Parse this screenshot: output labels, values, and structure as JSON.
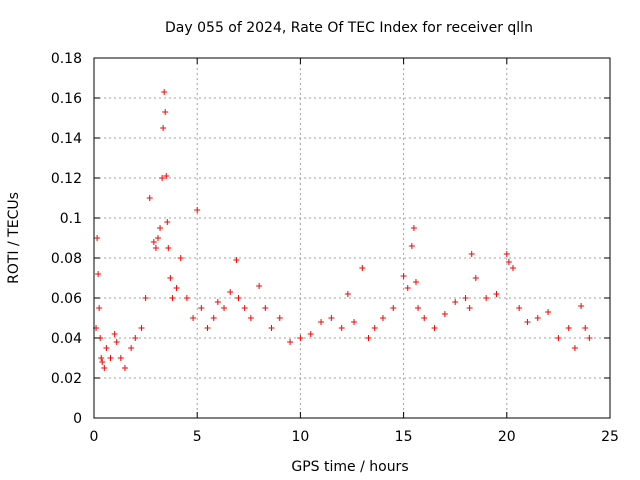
{
  "chart_data": {
    "type": "scatter",
    "title": "Day 055 of 2024, Rate Of TEC Index for receiver qlln",
    "xlabel": "GPS time / hours",
    "ylabel": "ROTI / TECUs",
    "xlim": [
      0,
      25
    ],
    "ylim": [
      0,
      0.18
    ],
    "x_ticks": [
      0,
      5,
      10,
      15,
      20,
      25
    ],
    "x_tick_labels": [
      "0",
      "5",
      "10",
      "15",
      "20",
      "25"
    ],
    "y_ticks": [
      0,
      0.02,
      0.04,
      0.06,
      0.08,
      0.1,
      0.12,
      0.14,
      0.16,
      0.18
    ],
    "y_tick_labels": [
      "0",
      "0.02",
      "0.04",
      "0.06",
      "0.08",
      "0.1",
      "0.12",
      "0.14",
      "0.16",
      "0.18"
    ],
    "grid": true,
    "marker": "+",
    "color": "#ff0000",
    "series": [
      {
        "name": "ROTI",
        "x": [
          0.1,
          0.15,
          0.2,
          0.25,
          0.3,
          0.35,
          0.4,
          0.5,
          0.6,
          0.8,
          1.0,
          1.1,
          1.3,
          1.5,
          1.8,
          2.0,
          2.3,
          2.5,
          2.7,
          2.9,
          3.0,
          3.1,
          3.2,
          3.3,
          3.35,
          3.4,
          3.45,
          3.5,
          3.55,
          3.6,
          3.7,
          3.8,
          4.0,
          4.2,
          4.5,
          4.8,
          5.0,
          5.2,
          5.5,
          5.8,
          6.0,
          6.3,
          6.6,
          6.9,
          7.0,
          7.3,
          7.6,
          8.0,
          8.3,
          8.6,
          9.0,
          9.5,
          10.0,
          10.5,
          11.0,
          11.5,
          12.0,
          12.3,
          12.6,
          13.0,
          13.3,
          13.6,
          14.0,
          14.5,
          15.0,
          15.2,
          15.4,
          15.5,
          15.6,
          15.7,
          16.0,
          16.5,
          17.0,
          17.5,
          18.0,
          18.2,
          18.3,
          18.5,
          19.0,
          19.5,
          20.0,
          20.1,
          20.3,
          20.6,
          21.0,
          21.5,
          22.0,
          22.5,
          23.0,
          23.3,
          23.6,
          23.8,
          24.0
        ],
        "y": [
          0.045,
          0.09,
          0.072,
          0.055,
          0.04,
          0.03,
          0.028,
          0.025,
          0.035,
          0.03,
          0.042,
          0.038,
          0.03,
          0.025,
          0.035,
          0.04,
          0.045,
          0.06,
          0.11,
          0.088,
          0.085,
          0.09,
          0.095,
          0.12,
          0.145,
          0.163,
          0.153,
          0.121,
          0.098,
          0.085,
          0.07,
          0.06,
          0.065,
          0.08,
          0.06,
          0.05,
          0.104,
          0.055,
          0.045,
          0.05,
          0.058,
          0.055,
          0.063,
          0.079,
          0.06,
          0.055,
          0.05,
          0.066,
          0.055,
          0.045,
          0.05,
          0.038,
          0.04,
          0.042,
          0.048,
          0.05,
          0.045,
          0.062,
          0.048,
          0.075,
          0.04,
          0.045,
          0.05,
          0.055,
          0.071,
          0.065,
          0.086,
          0.095,
          0.068,
          0.055,
          0.05,
          0.045,
          0.052,
          0.058,
          0.06,
          0.055,
          0.082,
          0.07,
          0.06,
          0.062,
          0.082,
          0.078,
          0.075,
          0.055,
          0.048,
          0.05,
          0.053,
          0.04,
          0.045,
          0.035,
          0.056,
          0.045,
          0.04
        ]
      }
    ]
  }
}
